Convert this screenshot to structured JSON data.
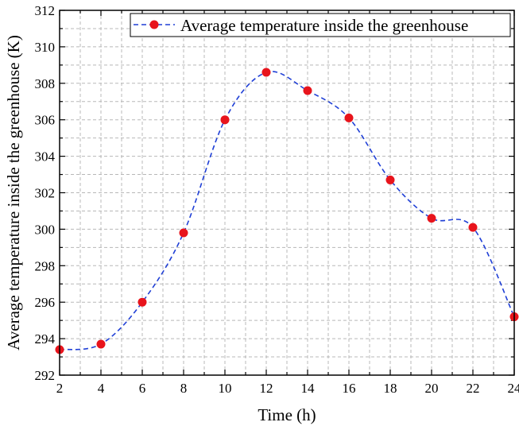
{
  "chart_data": {
    "type": "line",
    "xlabel": "Time (h)",
    "ylabel": "Average temperature inside the greenhouse (K)",
    "xlim": [
      2,
      24
    ],
    "ylim": [
      292,
      312
    ],
    "x_ticks": [
      2,
      4,
      6,
      8,
      10,
      12,
      14,
      16,
      18,
      20,
      22,
      24
    ],
    "y_ticks": [
      292,
      294,
      296,
      298,
      300,
      302,
      304,
      306,
      308,
      310,
      312
    ],
    "grid": true,
    "legend_position": "top-right",
    "series": [
      {
        "name": "Average temperature inside the greenhouse",
        "line_color": "#1f3fd6",
        "line_style": "dashed",
        "marker_color": "#e8141c",
        "marker": "circle",
        "x": [
          2,
          4,
          6,
          8,
          10,
          12,
          14,
          16,
          18,
          20,
          22,
          24
        ],
        "y": [
          293.4,
          293.7,
          296.0,
          299.8,
          306.0,
          308.6,
          307.6,
          306.1,
          302.7,
          300.6,
          300.1,
          295.2
        ]
      }
    ]
  }
}
